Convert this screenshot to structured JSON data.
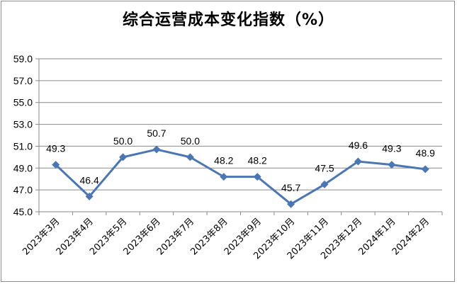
{
  "chart_data": {
    "type": "line",
    "title": "综合运营成本变化指数（%）",
    "categories": [
      "2023年3月",
      "2023年4月",
      "2023年5月",
      "2023年6月",
      "2023年7月",
      "2023年8月",
      "2023年9月",
      "2023年10月",
      "2023年11月",
      "2023年12月",
      "2024年1月",
      "2024年2月"
    ],
    "series": [
      {
        "values": [
          49.3,
          46.4,
          50.0,
          50.7,
          50.0,
          48.2,
          48.2,
          45.7,
          47.5,
          49.6,
          49.3,
          48.9
        ],
        "labels": [
          "49.3",
          "46.4",
          "50.0",
          "50.7",
          "50.0",
          "48.2",
          "48.2",
          "45.7",
          "47.5",
          "49.6",
          "49.3",
          "48.9"
        ],
        "color": "#4a77b4"
      }
    ],
    "yticks": [
      "45.0",
      "47.0",
      "49.0",
      "51.0",
      "53.0",
      "55.0",
      "57.0",
      "59.0"
    ],
    "ylim": [
      45.0,
      59.0
    ],
    "grid": true
  }
}
